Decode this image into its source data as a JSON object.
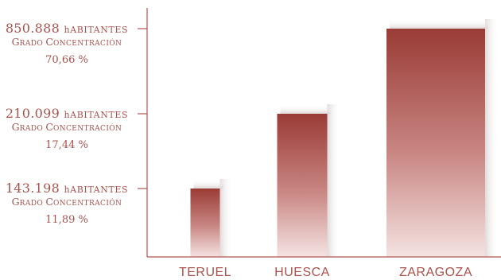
{
  "chart_data": {
    "type": "bar",
    "categories": [
      "TERUEL",
      "HUESCA",
      "ZARAGOZA"
    ],
    "values": [
      143198,
      210099,
      850888
    ],
    "concentration_pct": [
      11.89,
      17.44,
      70.66
    ],
    "y_tick_labels": [
      {
        "population": "143.198",
        "unit": "habitantes",
        "grado": "Grado",
        "concentracion": "Concentración",
        "pct": "11,89 %"
      },
      {
        "population": "210.099",
        "unit": "habitantes",
        "grado": "Grado",
        "concentracion": "Concentración",
        "pct": "17,44 %"
      },
      {
        "population": "850.888",
        "unit": "habitantes",
        "grado": "Grado",
        "concentracion": "Concentración",
        "pct": "70,66 %"
      }
    ],
    "title": "",
    "xlabel": "",
    "ylabel": "",
    "colors": {
      "bar_dark": "#9a3b36",
      "bar_light": "#f2dedd",
      "shadow": "#e9e3e2",
      "axis": "#b0544f",
      "text": "#a9524c"
    }
  }
}
